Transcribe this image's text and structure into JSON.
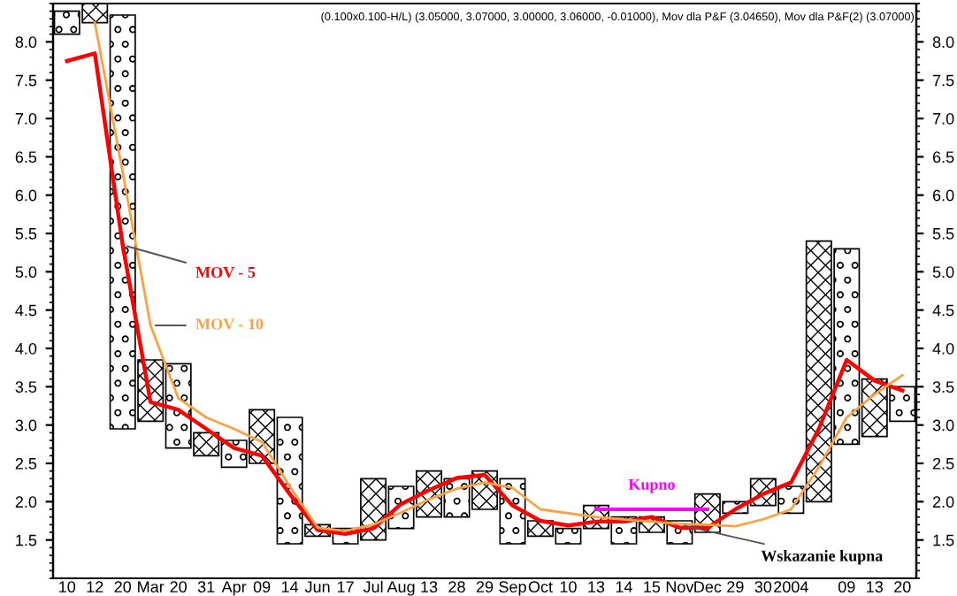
{
  "chart_data": {
    "type": "bar",
    "title": "(0.100x0.100-H/L) (3.05000, 3.07000, 3.00000, 3.06000, -0.01000), Mov dla P&F (3.04650), Mov dla P&F(2) (3.07000)",
    "categories": [
      "10",
      "12",
      "20",
      "Mar",
      "20",
      "31",
      "Apr",
      "09",
      "14",
      "Jun",
      "17",
      "Jul",
      "Aug",
      "13",
      "28",
      "29",
      "Sep",
      "Oct",
      "10",
      "13",
      "14",
      "15",
      "Nov",
      "Dec",
      "29",
      "30",
      "2004",
      null,
      "09",
      "13",
      "20"
    ],
    "ylim": [
      1.0,
      8.5
    ],
    "yticks": [
      1.5,
      {
        "value": 2,
        "label": "2.0"
      },
      2.5,
      {
        "value": 3,
        "label": "3.0"
      },
      3.5,
      {
        "value": 4,
        "label": "4.0"
      },
      4.5,
      {
        "value": 5,
        "label": "5.0"
      },
      5.5,
      {
        "value": 6,
        "label": "6.0"
      },
      6.5,
      {
        "value": 7,
        "label": "7.0"
      },
      7.5,
      {
        "value": 8,
        "label": "8.0"
      }
    ],
    "y2lim": [
      1.0,
      8.5
    ],
    "y2ticks": [
      1.5,
      {
        "value": 2,
        "label": "2.0"
      },
      2.5,
      {
        "value": 3,
        "label": "3.0"
      },
      3.5,
      {
        "value": 4,
        "label": "4.0"
      },
      4.5,
      {
        "value": 5,
        "label": "5.0"
      },
      5.5,
      {
        "value": 6,
        "label": "6.0"
      },
      6.5,
      {
        "value": 7,
        "label": "7.0"
      },
      7.5,
      {
        "value": 8,
        "label": "8.0"
      }
    ],
    "grid": false,
    "legend": false,
    "series": [
      {
        "color": "#000000",
        "marker": "cross",
        "base": [
          null,
          8.25,
          null,
          3.05,
          null,
          2.6,
          null,
          2.5,
          null,
          1.55,
          null,
          1.5,
          null,
          1.8,
          null,
          1.9,
          null,
          1.55,
          null,
          1.65,
          null,
          1.6,
          null,
          1.6,
          null,
          1.95,
          null,
          2.0,
          null,
          2.85,
          null
        ],
        "values": [
          null,
          0.25,
          null,
          0.8,
          null,
          0.3,
          null,
          0.7,
          null,
          0.15,
          null,
          0.8,
          null,
          0.6,
          null,
          0.5,
          null,
          0.2,
          null,
          0.3,
          null,
          0.2,
          null,
          0.5,
          null,
          0.35,
          null,
          3.4,
          null,
          0.75,
          null
        ]
      },
      {
        "color": "#000000",
        "marker": "circle",
        "base": [
          8.1,
          null,
          2.95,
          null,
          2.7,
          null,
          2.45,
          null,
          1.45,
          null,
          1.45,
          null,
          1.65,
          null,
          1.8,
          null,
          1.45,
          null,
          1.45,
          null,
          1.45,
          null,
          1.45,
          null,
          1.85,
          null,
          1.85,
          null,
          2.75,
          null,
          3.05
        ],
        "values": [
          0.3,
          null,
          5.4,
          null,
          1.1,
          null,
          0.35,
          null,
          1.65,
          null,
          0.2,
          null,
          0.55,
          null,
          0.5,
          null,
          0.85,
          null,
          0.2,
          null,
          0.35,
          null,
          0.3,
          null,
          0.15,
          null,
          0.35,
          null,
          2.55,
          null,
          0.45
        ]
      },
      {
        "type": "line",
        "name": "MOV - 5",
        "color": "#ff0000",
        "values": [
          7.75,
          7.85,
          5.35,
          3.3,
          3.2,
          2.95,
          2.7,
          2.6,
          2.1,
          1.63,
          1.58,
          1.65,
          1.97,
          2.15,
          2.31,
          2.35,
          1.95,
          1.75,
          1.69,
          1.74,
          1.74,
          1.8,
          1.66,
          1.66,
          1.9,
          2.1,
          2.25,
          2.95,
          3.85,
          3.58,
          3.45
        ]
      },
      {
        "type": "line",
        "name": "MOV - 10",
        "color": "#ffa040",
        "values": [
          null,
          8.25,
          6.3,
          4.3,
          3.35,
          3.1,
          2.95,
          2.78,
          2.2,
          1.66,
          1.62,
          1.7,
          1.86,
          2.03,
          2.17,
          2.25,
          2.18,
          1.9,
          1.85,
          1.8,
          1.77,
          1.74,
          1.71,
          1.7,
          1.68,
          1.77,
          1.9,
          2.45,
          3.1,
          3.4,
          3.65
        ]
      },
      {
        "type": "line",
        "name": "Kupno",
        "color": "#ff00ff",
        "values": [
          null,
          null,
          null,
          null,
          null,
          null,
          null,
          null,
          null,
          null,
          null,
          null,
          null,
          null,
          null,
          null,
          null,
          null,
          null,
          1.9,
          1.9,
          1.9,
          1.9,
          1.9,
          null,
          null,
          null,
          null,
          null,
          null,
          null
        ]
      }
    ],
    "annotations": [
      {
        "text": "Wskazanie kupna",
        "x": "Nov",
        "y": 1.7
      }
    ]
  }
}
